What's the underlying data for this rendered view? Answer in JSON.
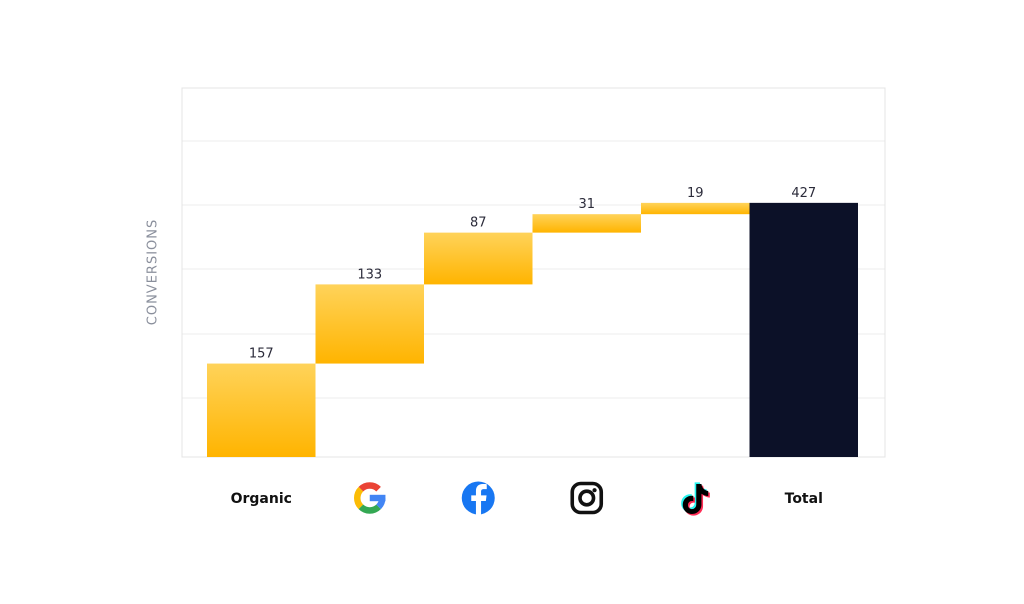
{
  "chart_data": {
    "type": "bar",
    "subtype": "waterfall",
    "ylabel": "CONVERSIONS",
    "categories": [
      "Organic",
      "google-icon",
      "facebook-icon",
      "instagram-icon",
      "tiktok-icon",
      "Total"
    ],
    "category_kinds": [
      "text",
      "icon",
      "icon",
      "icon",
      "icon",
      "text"
    ],
    "values": [
      157,
      133,
      87,
      31,
      19,
      427
    ],
    "is_total": [
      false,
      false,
      false,
      false,
      false,
      true
    ],
    "ylim": [
      0,
      620
    ],
    "grid": true,
    "legend": "none"
  },
  "colors": {
    "increment_top": "#ffd35a",
    "increment_bottom": "#ffb400",
    "total": "#0c1128",
    "grid": "#ececec",
    "frame": "#e4e4e4",
    "google_blue": "#4285F4",
    "google_red": "#EA4335",
    "google_yellow": "#FBBC05",
    "google_green": "#34A853",
    "facebook": "#1877F2",
    "instagram": "#111111",
    "tiktok_cyan": "#25F4EE",
    "tiktok_pink": "#FE2C55",
    "tiktok_black": "#000000"
  }
}
